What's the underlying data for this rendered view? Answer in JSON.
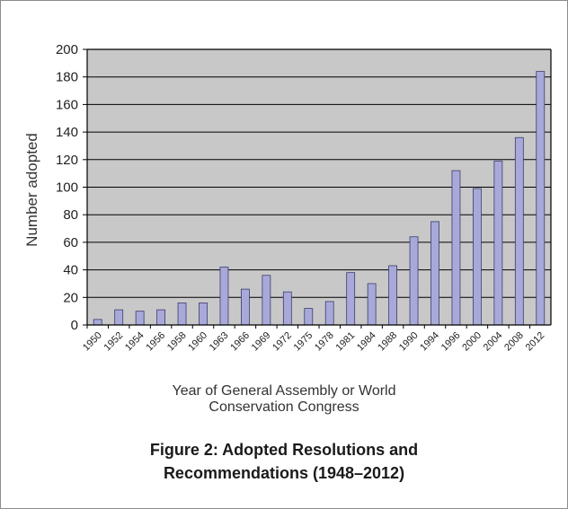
{
  "chart_data": {
    "type": "bar",
    "title": "",
    "ylabel": "Number adopted",
    "xlabel_lines": [
      "Year of General Assembly or World",
      "Conservation Congress"
    ],
    "categories": [
      "1950",
      "1952",
      "1954",
      "1956",
      "1958",
      "1960",
      "1963",
      "1966",
      "1969",
      "1972",
      "1975",
      "1978",
      "1981",
      "1984",
      "1988",
      "1990",
      "1994",
      "1996",
      "2000",
      "2004",
      "2008",
      "2012"
    ],
    "values": [
      4,
      11,
      10,
      11,
      16,
      16,
      42,
      26,
      36,
      24,
      12,
      17,
      38,
      30,
      43,
      64,
      75,
      112,
      99,
      119,
      136,
      184
    ],
    "ylim": [
      0,
      200
    ],
    "yticks": [
      0,
      20,
      40,
      60,
      80,
      100,
      120,
      140,
      160,
      180,
      200
    ],
    "grid": true,
    "legend": "none",
    "colors": {
      "bar": "#a9a9d9",
      "bar_border": "#3b3b6e",
      "plot_bg": "#c8c8c8",
      "grid": "#000000"
    }
  },
  "figure_caption": {
    "line1": "Figure 2: Adopted Resolutions and",
    "line2": "Recommendations (1948–2012)"
  }
}
